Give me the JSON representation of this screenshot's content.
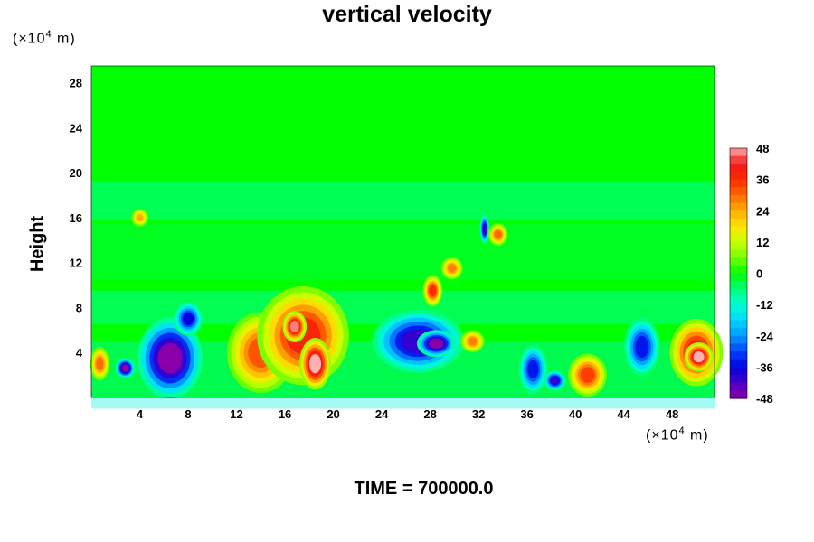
{
  "chart_data": {
    "type": "heatmap",
    "title": "vertical velocity",
    "ylabel": "Height",
    "y_unit_prefix": "(×10",
    "y_unit_exp": "4",
    "y_unit_suffix": " m)",
    "x_unit_prefix": "(×10",
    "x_unit_exp": "4",
    "x_unit_suffix": " m)",
    "xlim": [
      0,
      51.5
    ],
    "ylim": [
      0,
      29.5
    ],
    "x_ticks": [
      4,
      8,
      12,
      16,
      20,
      24,
      28,
      32,
      36,
      40,
      44,
      48
    ],
    "y_ticks": [
      4,
      8,
      12,
      16,
      20,
      24,
      28
    ],
    "colorbar": {
      "ticks": [
        48,
        36,
        24,
        12,
        0,
        -12,
        -24,
        -36,
        -48
      ],
      "range": [
        -48,
        48
      ]
    },
    "background_value": 0,
    "features": [
      {
        "x": 6.5,
        "y": 3.5,
        "value": -48,
        "shape": "ellipse",
        "rx": 2.7,
        "ry": 3.6
      },
      {
        "x": 8.0,
        "y": 7.0,
        "value": -36,
        "shape": "ellipse",
        "rx": 1.2,
        "ry": 1.5
      },
      {
        "x": 2.8,
        "y": 2.6,
        "value": -48,
        "shape": "ellipse",
        "rx": 0.8,
        "ry": 0.9
      },
      {
        "x": 14.0,
        "y": 4.0,
        "value": 32,
        "shape": "ellipse",
        "rx": 2.8,
        "ry": 3.6
      },
      {
        "x": 17.5,
        "y": 5.5,
        "value": 38,
        "shape": "ellipse",
        "rx": 3.8,
        "ry": 4.4
      },
      {
        "x": 18.5,
        "y": 3.0,
        "value": 48,
        "shape": "ellipse",
        "rx": 1.3,
        "ry": 2.3
      },
      {
        "x": 16.8,
        "y": 6.3,
        "value": 46,
        "shape": "ellipse",
        "rx": 1.0,
        "ry": 1.4
      },
      {
        "x": 27.0,
        "y": 5.0,
        "value": -40,
        "shape": "ellipse",
        "rx": 3.8,
        "ry": 2.8
      },
      {
        "x": 28.5,
        "y": 4.8,
        "value": -48,
        "shape": "ellipse",
        "rx": 1.6,
        "ry": 1.2
      },
      {
        "x": 31.5,
        "y": 5.0,
        "value": 28,
        "shape": "ellipse",
        "rx": 1.0,
        "ry": 1.0
      },
      {
        "x": 28.2,
        "y": 9.5,
        "value": 36,
        "shape": "ellipse",
        "rx": 0.8,
        "ry": 1.4
      },
      {
        "x": 29.8,
        "y": 11.5,
        "value": 28,
        "shape": "ellipse",
        "rx": 0.9,
        "ry": 1.0
      },
      {
        "x": 32.5,
        "y": 15.0,
        "value": -40,
        "shape": "ellipse",
        "rx": 0.4,
        "ry": 1.3
      },
      {
        "x": 33.6,
        "y": 14.5,
        "value": 30,
        "shape": "ellipse",
        "rx": 0.8,
        "ry": 1.0
      },
      {
        "x": 36.5,
        "y": 2.5,
        "value": -34,
        "shape": "ellipse",
        "rx": 1.2,
        "ry": 2.2
      },
      {
        "x": 38.3,
        "y": 1.5,
        "value": -40,
        "shape": "ellipse",
        "rx": 0.9,
        "ry": 0.9
      },
      {
        "x": 41.0,
        "y": 2.0,
        "value": 34,
        "shape": "ellipse",
        "rx": 1.6,
        "ry": 1.9
      },
      {
        "x": 45.5,
        "y": 4.5,
        "value": -34,
        "shape": "ellipse",
        "rx": 1.5,
        "ry": 2.6
      },
      {
        "x": 50.0,
        "y": 4.0,
        "value": 40,
        "shape": "ellipse",
        "rx": 2.2,
        "ry": 3.0
      },
      {
        "x": 50.2,
        "y": 3.6,
        "value": 48,
        "shape": "ellipse",
        "rx": 1.2,
        "ry": 1.3
      },
      {
        "x": 4.0,
        "y": 16.0,
        "value": 24,
        "shape": "ellipse",
        "rx": 0.7,
        "ry": 0.8
      },
      {
        "x": 0.7,
        "y": 3.0,
        "value": 30,
        "shape": "ellipse",
        "rx": 0.8,
        "ry": 1.5
      }
    ]
  },
  "footer": "TIME = 700000.0"
}
